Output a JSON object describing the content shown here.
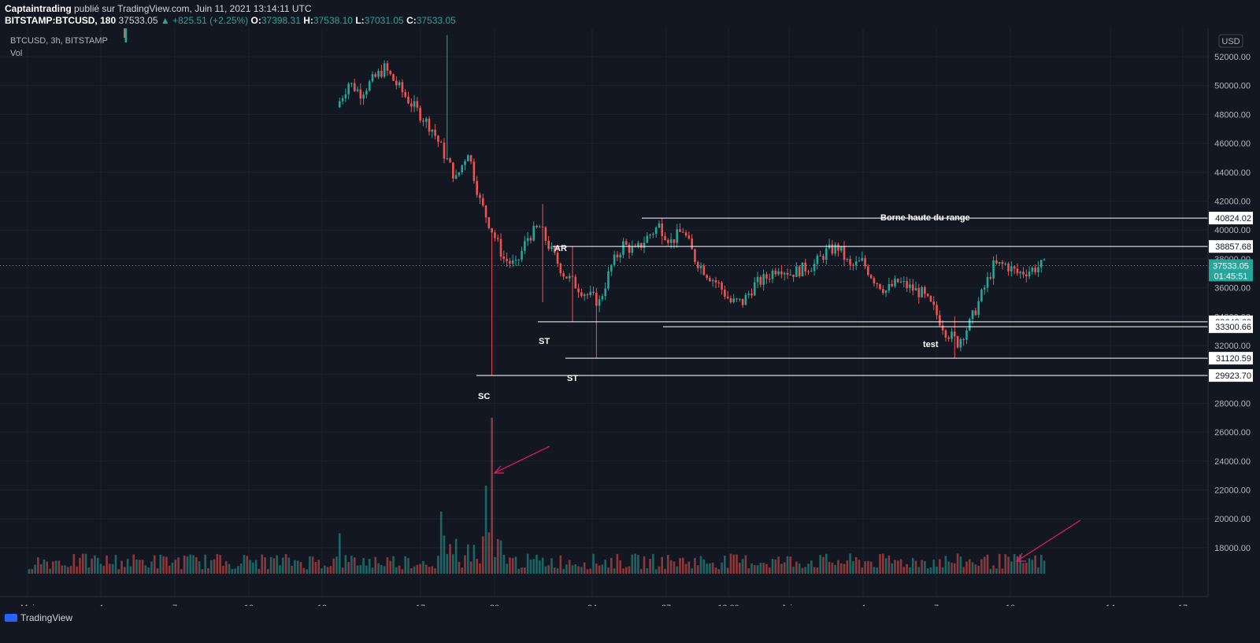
{
  "header": {
    "author": "Captaintrading",
    "published": " publié sur TradingView.com, Juin 11, 2021 13:14:11 UTC",
    "symbol": "BITSTAMP:BTCUSD, 180",
    "last": "37533.05",
    "change": "▲ +825.51 (+2.25%)",
    "o_label": "O:",
    "o": "37398.31",
    "h_label": "H:",
    "h": "37538.10",
    "l_label": "L:",
    "l": "37031.05",
    "c_label": "C:",
    "c": "37533.05"
  },
  "legend": {
    "symbol_line": "BTCUSD, 3h, BITSTAMP",
    "vol_label": "Vol"
  },
  "currency": "USD",
  "current_price": {
    "value": "37533.05",
    "countdown": "01:45:51"
  },
  "footer": {
    "brand": "TradingView"
  },
  "colors": {
    "up": "#26a69a",
    "down": "#ef5350",
    "background": "#131722",
    "arrow": "#e91e63",
    "price_label": "#26a69a"
  },
  "chart_data": {
    "type": "candlestick",
    "y_ticks": [
      "52000.00",
      "50000.00",
      "48000.00",
      "46000.00",
      "44000.00",
      "42000.00",
      "40000.00",
      "38000.00",
      "36000.00",
      "34000.00",
      "32000.00",
      "30000.00",
      "28000.00",
      "26000.00",
      "24000.00",
      "22000.00",
      "20000.00",
      "18000.00"
    ],
    "ylim": [
      16200,
      53600
    ],
    "x_ticks": [
      "Mai",
      "4",
      "7",
      "10",
      "13",
      "17",
      "20",
      "24",
      "27",
      "12:00",
      "Juin",
      "4",
      "7",
      "10",
      "14",
      "17"
    ],
    "levels": [
      {
        "value": 40824.02,
        "label": "40824.02"
      },
      {
        "value": 38857.68,
        "label": "38857.68"
      },
      {
        "value": 33642.63,
        "label": "33642.63"
      },
      {
        "value": 33300.66,
        "label": "33300.66"
      },
      {
        "value": 31120.59,
        "label": "31120.59"
      },
      {
        "value": 29923.7,
        "label": "29923.70"
      }
    ],
    "annotations": [
      "Borne haute du range",
      "AR",
      "ST",
      "ST",
      "SC",
      "test"
    ],
    "price_path": [
      [
        13,
        48500
      ],
      [
        13.5,
        50200
      ],
      [
        14,
        49500
      ],
      [
        15,
        51200
      ],
      [
        16,
        49000
      ],
      [
        17,
        47000
      ],
      [
        18,
        43500
      ],
      [
        18.5,
        45500
      ],
      [
        19,
        42000
      ],
      [
        19.5,
        40000
      ],
      [
        20,
        38000
      ],
      [
        20.5,
        37500
      ],
      [
        21,
        39500
      ],
      [
        21.5,
        40200
      ],
      [
        22,
        38500
      ],
      [
        22.5,
        37000
      ],
      [
        23,
        36200
      ],
      [
        23.5,
        35500
      ],
      [
        24,
        35000
      ],
      [
        24.5,
        37500
      ],
      [
        25,
        39000
      ],
      [
        25.5,
        38500
      ],
      [
        26,
        39500
      ],
      [
        26.5,
        40300
      ],
      [
        27,
        39200
      ],
      [
        27.5,
        40000
      ],
      [
        28,
        38000
      ],
      [
        28.5,
        37000
      ],
      [
        29,
        36200
      ],
      [
        29.5,
        35000
      ],
      [
        30,
        35000
      ],
      [
        30.5,
        36200
      ],
      [
        31,
        36700
      ],
      [
        31.5,
        37500
      ],
      [
        32,
        37000
      ],
      [
        33,
        37600
      ],
      [
        33.5,
        38500
      ],
      [
        34,
        38800
      ],
      [
        34.5,
        37400
      ],
      [
        35,
        37800
      ],
      [
        35.5,
        36600
      ],
      [
        36,
        35800
      ],
      [
        36.5,
        36400
      ],
      [
        37,
        36000
      ],
      [
        37.5,
        35600
      ],
      [
        38,
        34500
      ],
      [
        38.5,
        33000
      ],
      [
        39,
        32200
      ],
      [
        39.5,
        33500
      ],
      [
        40,
        35500
      ],
      [
        40.5,
        37500
      ],
      [
        41,
        37600
      ],
      [
        41.5,
        37000
      ],
      [
        42,
        37200
      ],
      [
        42.5,
        37533
      ]
    ],
    "wick_extremes": [
      {
        "day": 17.5,
        "low": 45000,
        "high": 53500
      },
      {
        "day": 19.4,
        "low": 29923,
        "high": 40000
      },
      {
        "day": 21.5,
        "low": 35000,
        "high": 41800
      },
      {
        "day": 22.7,
        "low": 33642,
        "high": 38857
      },
      {
        "day": 23.7,
        "low": 31120,
        "high": 36000
      },
      {
        "day": 26.5,
        "low": 39000,
        "high": 40824
      },
      {
        "day": 38.8,
        "low": 31120,
        "high": 34000
      }
    ],
    "volume_spikes": [
      {
        "day": 19.35,
        "value": 25500
      },
      {
        "day": 19.1,
        "value": 22300
      },
      {
        "day": 17.2,
        "value": 19000
      },
      {
        "day": 13.0,
        "value": 19000
      }
    ],
    "volume_base": 16200
  }
}
